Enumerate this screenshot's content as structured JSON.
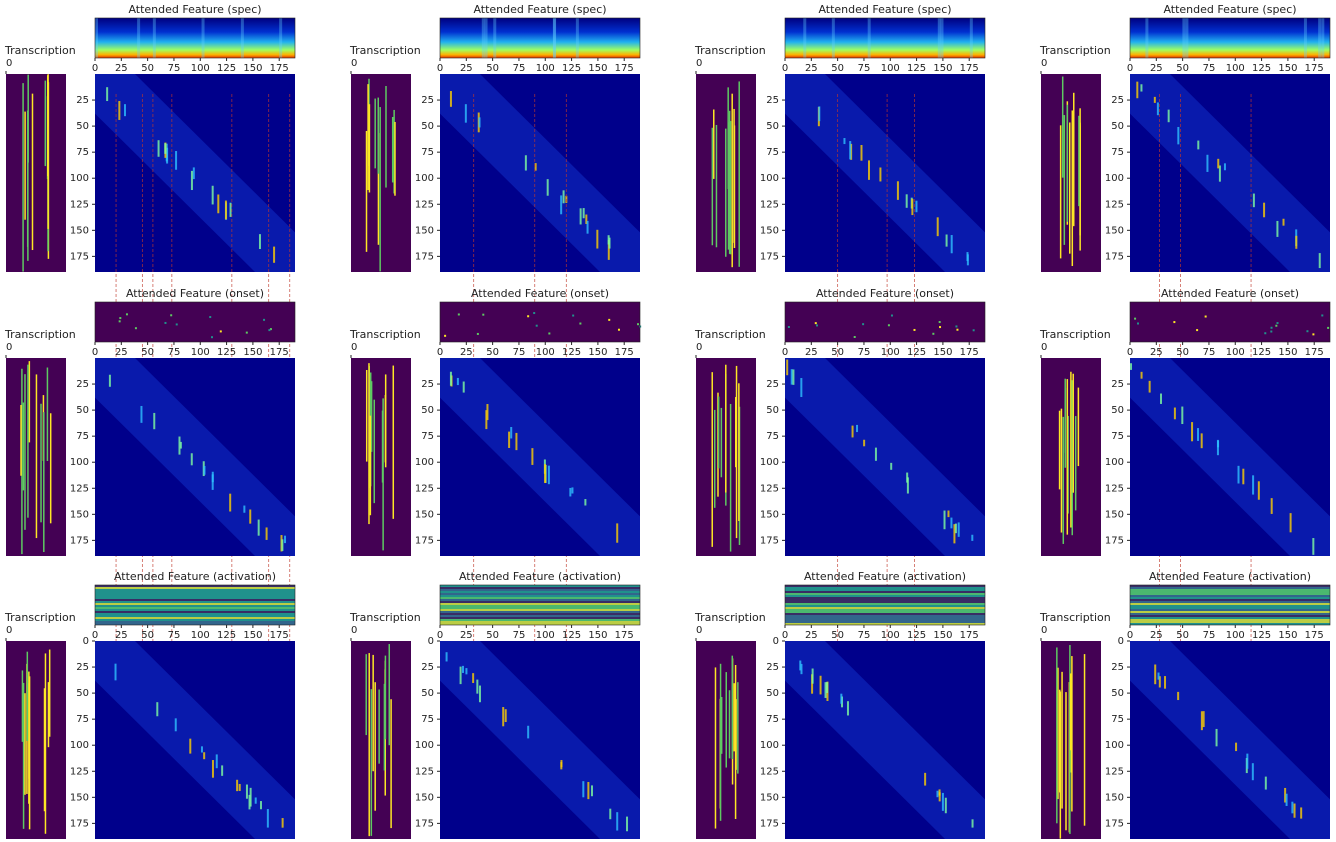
{
  "panels": [
    {
      "transcription": {
        "title": "Transcription",
        "yticks": [
          0
        ]
      },
      "feature": {
        "title": "Attended Feature (spec)",
        "kind": "spec",
        "xlim": [
          0,
          190
        ],
        "xticks": [
          0,
          25,
          50,
          75,
          100,
          125,
          150,
          175
        ]
      },
      "attention": {
        "ylim": [
          0,
          190
        ],
        "yticks": [
          25,
          50,
          75,
          100,
          125,
          150,
          175
        ]
      },
      "links": [
        20,
        45,
        55,
        73,
        130,
        165,
        185
      ]
    },
    {
      "transcription": {
        "title": "Transcription",
        "yticks": [
          0
        ]
      },
      "feature": {
        "title": "Attended Feature (spec)",
        "kind": "spec",
        "xlim": [
          0,
          190
        ],
        "xticks": [
          0,
          25,
          50,
          75,
          100,
          125,
          150,
          175
        ]
      },
      "attention": {
        "ylim": [
          0,
          190
        ],
        "yticks": [
          25,
          50,
          75,
          100,
          125,
          150,
          175
        ]
      },
      "links": [
        32,
        90,
        120
      ]
    },
    {
      "transcription": {
        "title": "Transcription",
        "yticks": [
          0
        ]
      },
      "feature": {
        "title": "Attended Feature (spec)",
        "kind": "spec",
        "xlim": [
          0,
          190
        ],
        "xticks": [
          0,
          25,
          50,
          75,
          100,
          125,
          150,
          175
        ]
      },
      "attention": {
        "ylim": [
          0,
          190
        ],
        "yticks": [
          25,
          50,
          75,
          100,
          125,
          150,
          175
        ]
      },
      "links": [
        50,
        97,
        123
      ]
    },
    {
      "transcription": {
        "title": "Transcription",
        "yticks": [
          0
        ]
      },
      "feature": {
        "title": "Attended Feature (spec)",
        "kind": "spec",
        "xlim": [
          0,
          190
        ],
        "xticks": [
          0,
          25,
          50,
          75,
          100,
          125,
          150,
          175
        ]
      },
      "attention": {
        "ylim": [
          0,
          190
        ],
        "yticks": [
          25,
          50,
          75,
          100,
          125,
          150,
          175
        ]
      },
      "links": [
        28,
        48,
        115
      ]
    },
    {
      "transcription": {
        "title": "Transcription",
        "yticks": [
          0
        ]
      },
      "feature": {
        "title": "Attended Feature (onset)",
        "kind": "onset",
        "xlim": [
          0,
          190
        ],
        "xticks": [
          0,
          25,
          50,
          75,
          100,
          125,
          150,
          175
        ]
      },
      "attention": {
        "ylim": [
          0,
          190
        ],
        "yticks": [
          25,
          50,
          75,
          100,
          125,
          150,
          175
        ]
      }
    },
    {
      "transcription": {
        "title": "Transcription",
        "yticks": [
          0
        ]
      },
      "feature": {
        "title": "Attended Feature (onset)",
        "kind": "onset",
        "xlim": [
          0,
          190
        ],
        "xticks": [
          0,
          25,
          50,
          75,
          100,
          125,
          150,
          175
        ]
      },
      "attention": {
        "ylim": [
          0,
          190
        ],
        "yticks": [
          25,
          50,
          75,
          100,
          125,
          150,
          175
        ]
      }
    },
    {
      "transcription": {
        "title": "Transcription",
        "yticks": [
          0
        ]
      },
      "feature": {
        "title": "Attended Feature (onset)",
        "kind": "onset",
        "xlim": [
          0,
          190
        ],
        "xticks": [
          0,
          25,
          50,
          75,
          100,
          125,
          150,
          175
        ]
      },
      "attention": {
        "ylim": [
          0,
          190
        ],
        "yticks": [
          25,
          50,
          75,
          100,
          125,
          150,
          175
        ]
      }
    },
    {
      "transcription": {
        "title": "Transcription",
        "yticks": [
          0
        ]
      },
      "feature": {
        "title": "Attended Feature (onset)",
        "kind": "onset",
        "xlim": [
          0,
          190
        ],
        "xticks": [
          0,
          25,
          50,
          75,
          100,
          125,
          150,
          175
        ]
      },
      "attention": {
        "ylim": [
          0,
          190
        ],
        "yticks": [
          25,
          50,
          75,
          100,
          125,
          150,
          175
        ]
      }
    },
    {
      "transcription": {
        "title": "Transcription",
        "yticks": [
          0
        ]
      },
      "feature": {
        "title": "Attended Feature (activation)",
        "kind": "activation",
        "xlim": [
          0,
          190
        ],
        "xticks": [
          0,
          25,
          50,
          75,
          100,
          125,
          150,
          175
        ]
      },
      "attention": {
        "ylim": [
          0,
          190
        ],
        "yticks": [
          0,
          25,
          50,
          75,
          100,
          125,
          150,
          175
        ]
      }
    },
    {
      "transcription": {
        "title": "Transcription",
        "yticks": [
          0
        ]
      },
      "feature": {
        "title": "Attended Feature (activation)",
        "kind": "activation",
        "xlim": [
          0,
          190
        ],
        "xticks": [
          0,
          25,
          50,
          75,
          100,
          125,
          150,
          175
        ]
      },
      "attention": {
        "ylim": [
          0,
          190
        ],
        "yticks": [
          0,
          25,
          50,
          75,
          100,
          125,
          150,
          175
        ]
      }
    },
    {
      "transcription": {
        "title": "Transcription",
        "yticks": [
          0
        ]
      },
      "feature": {
        "title": "Attended Feature (activation)",
        "kind": "activation",
        "xlim": [
          0,
          190
        ],
        "xticks": [
          0,
          25,
          50,
          75,
          100,
          125,
          150,
          175
        ]
      },
      "attention": {
        "ylim": [
          0,
          190
        ],
        "yticks": [
          0,
          25,
          50,
          75,
          100,
          125,
          150,
          175
        ]
      }
    },
    {
      "transcription": {
        "title": "Transcription",
        "yticks": [
          0
        ]
      },
      "feature": {
        "title": "Attended Feature (activation)",
        "kind": "activation",
        "xlim": [
          0,
          190
        ],
        "xticks": [
          0,
          25,
          50,
          75,
          100,
          125,
          150,
          175
        ]
      },
      "attention": {
        "ylim": [
          0,
          190
        ],
        "yticks": [
          0,
          25,
          50,
          75,
          100,
          125,
          150,
          175
        ]
      }
    }
  ]
}
